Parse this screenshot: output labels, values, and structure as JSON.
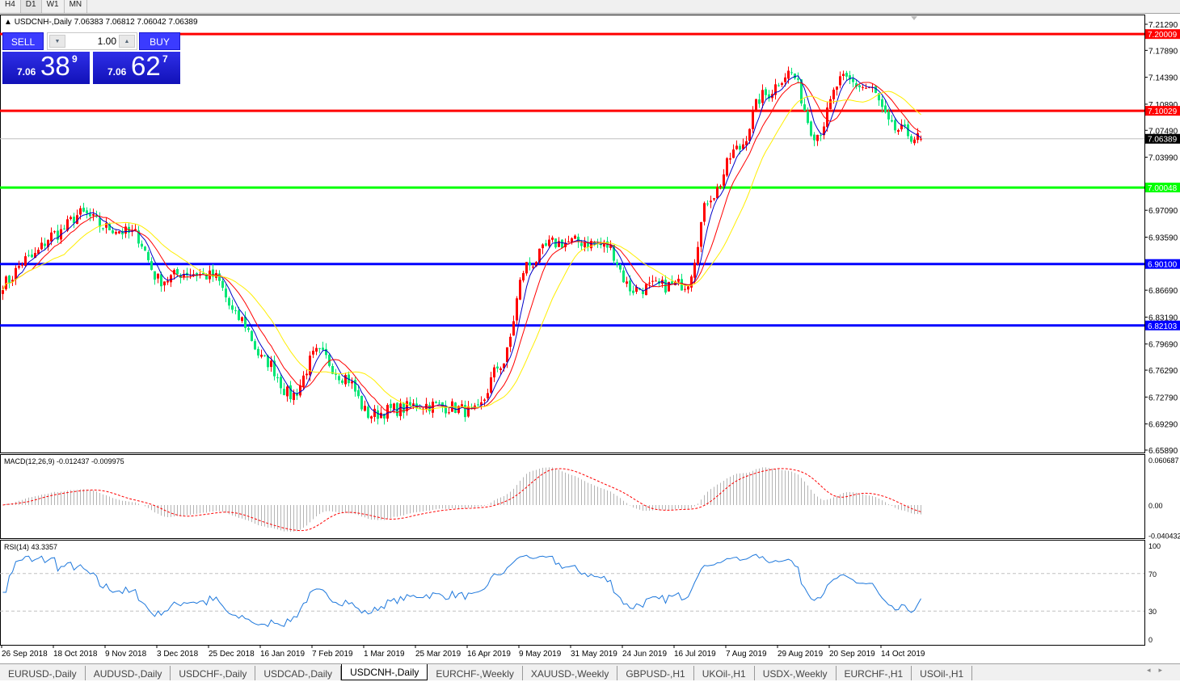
{
  "timeframes": [
    "H4",
    "D1",
    "W1",
    "MN"
  ],
  "active_timeframe": "D1",
  "chart_title": "USDCNH-,Daily  7.06383 7.06812 7.06042 7.06389",
  "trade_panel": {
    "sell_label": "SELL",
    "buy_label": "BUY",
    "lot": "1.00",
    "sell_small": "7.06",
    "sell_big": "38",
    "sell_pip": "9",
    "buy_small": "7.06",
    "buy_big": "62",
    "buy_pip": "7"
  },
  "colors": {
    "bull": "#ff0000",
    "bear": "#00e676",
    "ma_fast": "#0000c8",
    "ma_mid": "#ff0000",
    "ma_slow": "#ffee00",
    "macd_hist": "#b4b4b4",
    "macd_signal": "#ff0000",
    "rsi": "#1e78dc"
  },
  "chart_data": {
    "type": "candlestick",
    "symbol": "USDCNH-",
    "timeframe": "Daily",
    "ylim": [
      6.6589,
      7.2129
    ],
    "price_ticks": [
      "7.21290",
      "7.17890",
      "7.14390",
      "7.10890",
      "7.07490",
      "7.03990",
      "6.97090",
      "6.93590",
      "6.86690",
      "6.83190",
      "6.79690",
      "6.76290",
      "6.72790",
      "6.69290",
      "6.65890"
    ],
    "x_ticks": [
      "26 Sep 2018",
      "18 Oct 2018",
      "9 Nov 2018",
      "3 Dec 2018",
      "25 Dec 2018",
      "16 Jan 2019",
      "7 Feb 2019",
      "1 Mar 2019",
      "25 Mar 2019",
      "16 Apr 2019",
      "9 May 2019",
      "31 May 2019",
      "24 Jun 2019",
      "16 Jul 2019",
      "7 Aug 2019",
      "29 Aug 2019",
      "20 Sep 2019",
      "14 Oct 2019"
    ],
    "approx_closes": [
      6.876,
      6.908,
      6.94,
      6.966,
      6.948,
      6.94,
      6.88,
      6.89,
      6.885,
      6.83,
      6.775,
      6.73,
      6.785,
      6.755,
      6.705,
      6.712,
      6.718,
      6.715,
      6.708,
      6.77,
      6.9,
      6.928,
      6.93,
      6.925,
      6.868,
      6.872,
      6.875,
      6.99,
      7.05,
      7.12,
      7.15,
      7.07,
      7.14,
      7.13,
      7.076,
      7.064
    ],
    "last": {
      "open": 7.06383,
      "high": 7.06812,
      "low": 7.06042,
      "close": 7.06389
    },
    "levels": [
      {
        "price": "7.20009",
        "color": "#ff0000"
      },
      {
        "price": "7.10029",
        "color": "#ff0000"
      },
      {
        "price": "7.00048",
        "color": "#00ff00"
      },
      {
        "price": "6.90100",
        "color": "#0000ff"
      },
      {
        "price": "6.82103",
        "color": "#0000ff"
      }
    ],
    "current_price": "7.06389",
    "macd": {
      "label": "MACD(12,26,9) -0.012437 -0.009975",
      "ticks": [
        "0.060687",
        "0.00",
        "-0.040432"
      ],
      "ylim": [
        -0.040432,
        0.060687
      ]
    },
    "rsi": {
      "label": "RSI(14) 43.3357",
      "ticks": [
        "100",
        "70",
        "30",
        "0"
      ],
      "levels": [
        70,
        30
      ]
    }
  },
  "tabs": [
    "EURUSD-,Daily",
    "AUDUSD-,Daily",
    "USDCHF-,Daily",
    "USDCAD-,Daily",
    "USDCNH-,Daily",
    "EURCHF-,Weekly",
    "XAUUSD-,Weekly",
    "GBPUSD-,H1",
    "UKOil-,H1",
    "USDX-,Weekly",
    "EURCHF-,H1",
    "USOil-,H1"
  ],
  "active_tab": "USDCNH-,Daily"
}
